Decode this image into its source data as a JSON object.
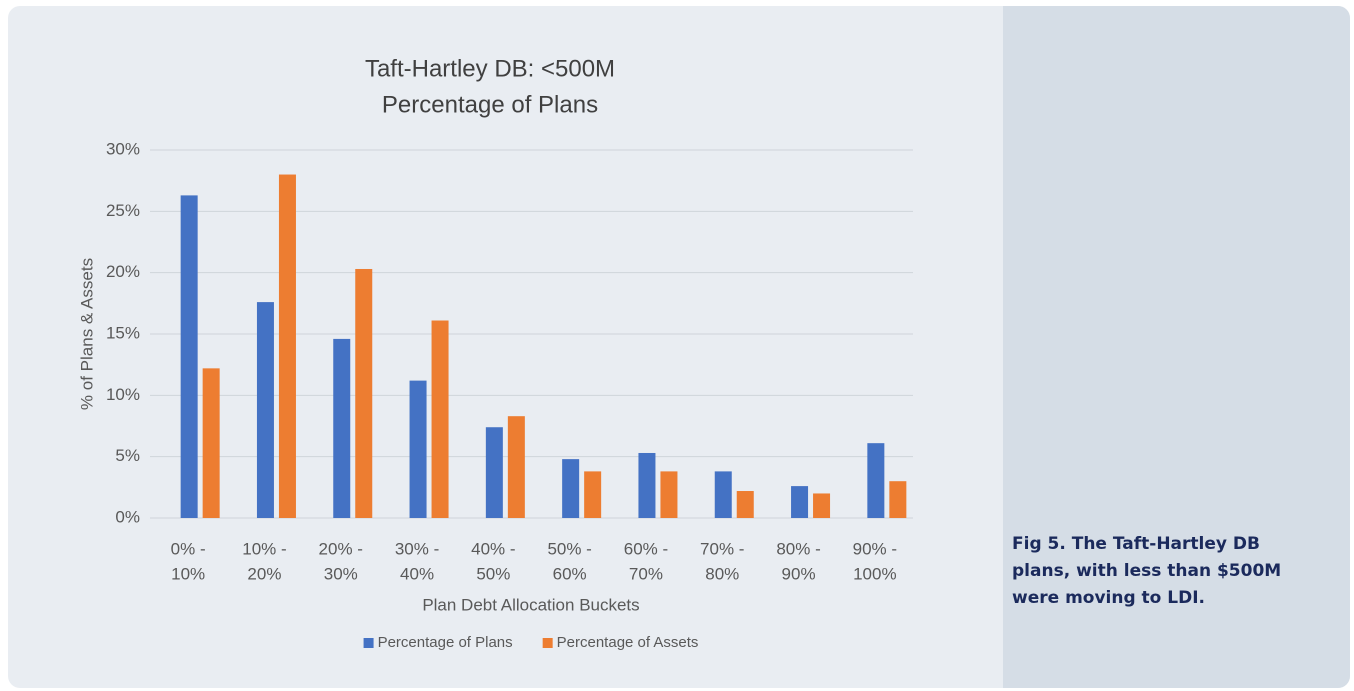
{
  "chart_data": {
    "type": "bar",
    "title": "Taft-Hartley DB: <500M",
    "subtitle": "Percentage of Plans",
    "x_label": "Plan Debt Allocation Buckets",
    "y_label": "% of Plans & Assets",
    "categories": [
      [
        "0% -",
        "10%"
      ],
      [
        "10% -",
        "20%"
      ],
      [
        "20% -",
        "30%"
      ],
      [
        "30% -",
        "40%"
      ],
      [
        "40% -",
        "50%"
      ],
      [
        "50% -",
        "60%"
      ],
      [
        "60% -",
        "70%"
      ],
      [
        "70% -",
        "80%"
      ],
      [
        "80% -",
        "90%"
      ],
      [
        "90% -",
        "100%"
      ]
    ],
    "series": [
      {
        "name": "Percentage of Plans",
        "color": "#4472c4",
        "values": [
          26.3,
          17.6,
          14.6,
          11.2,
          7.4,
          4.8,
          5.3,
          3.8,
          2.6,
          6.1
        ]
      },
      {
        "name": "Percentage of Assets",
        "color": "#ed7d31",
        "values": [
          12.2,
          28.0,
          20.3,
          16.1,
          8.3,
          3.8,
          3.8,
          2.2,
          2.0,
          3.0
        ]
      }
    ],
    "ylim": [
      0,
      30
    ],
    "yticks": [
      {
        "value": 0,
        "label": "0%"
      },
      {
        "value": 5,
        "label": "5%"
      },
      {
        "value": 10,
        "label": "10%"
      },
      {
        "value": 15,
        "label": "15%"
      },
      {
        "value": 20,
        "label": "20%"
      },
      {
        "value": 25,
        "label": "25%"
      },
      {
        "value": 30,
        "label": "30%"
      }
    ],
    "grid": true,
    "legend": "bottom"
  },
  "caption": "Fig 5. The Taft-Hartley DB plans, with less than $500M were moving to LDI."
}
